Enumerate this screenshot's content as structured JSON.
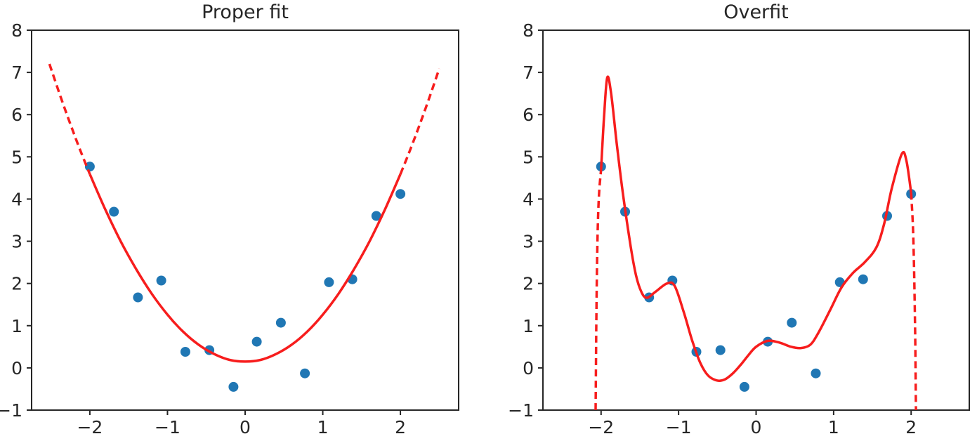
{
  "figure": {
    "background": "#ffffff"
  },
  "style": {
    "curve_color": "#f71d1d",
    "point_color": "#2077b4",
    "spine_color": "#262626",
    "text_color": "#262626",
    "point_radius": 7,
    "curve_width": 3.5,
    "dash_pattern": "10 6",
    "tick_length": 7
  },
  "chart_data": [
    {
      "type": "scatter",
      "title": "Proper fit",
      "xlim": [
        -2.75,
        2.75
      ],
      "ylim": [
        -1,
        8
      ],
      "grid": false,
      "legend": null,
      "xlabel": "",
      "ylabel": "",
      "xticks": [
        -2,
        -1,
        0,
        1,
        2
      ],
      "xtick_labels": [
        "−2",
        "−1",
        "0",
        "1",
        "2"
      ],
      "yticks": [
        -1,
        0,
        1,
        2,
        3,
        4,
        5,
        6,
        7,
        8
      ],
      "ytick_labels": [
        "−1",
        "0",
        "1",
        "2",
        "3",
        "4",
        "5",
        "6",
        "7",
        "8"
      ],
      "scatter_x": [
        -2.0,
        -1.69,
        -1.38,
        -1.08,
        -0.77,
        -0.46,
        -0.15,
        0.15,
        0.46,
        0.77,
        1.08,
        1.38,
        1.69,
        2.0
      ],
      "scatter_y": [
        4.77,
        3.7,
        1.67,
        2.07,
        0.38,
        0.42,
        -0.45,
        0.62,
        1.07,
        -0.13,
        2.03,
        2.1,
        3.6,
        4.12
      ],
      "curve_segments": [
        {
          "style": "dashed",
          "points": [
            [
              -2.52,
              7.2
            ],
            [
              -2.38,
              6.44
            ],
            [
              -2.25,
              5.77
            ],
            [
              -2.12,
              5.14
            ],
            [
              -2.0,
              4.59
            ]
          ]
        },
        {
          "style": "solid",
          "points": [
            [
              -2.0,
              4.59
            ],
            [
              -1.8,
              3.75
            ],
            [
              -1.6,
              2.99
            ],
            [
              -1.4,
              2.33
            ],
            [
              -1.2,
              1.75
            ],
            [
              -1.0,
              1.26
            ],
            [
              -0.8,
              0.86
            ],
            [
              -0.6,
              0.55
            ],
            [
              -0.4,
              0.33
            ],
            [
              -0.2,
              0.19
            ],
            [
              0.0,
              0.15
            ],
            [
              0.2,
              0.19
            ],
            [
              0.4,
              0.33
            ],
            [
              0.6,
              0.55
            ],
            [
              0.8,
              0.86
            ],
            [
              1.0,
              1.26
            ],
            [
              1.2,
              1.75
            ],
            [
              1.4,
              2.33
            ],
            [
              1.6,
              2.99
            ],
            [
              1.8,
              3.75
            ],
            [
              2.0,
              4.59
            ]
          ]
        },
        {
          "style": "dashed",
          "points": [
            [
              2.0,
              4.59
            ],
            [
              2.12,
              5.14
            ],
            [
              2.25,
              5.77
            ],
            [
              2.38,
              6.44
            ],
            [
              2.5,
              7.09
            ]
          ]
        }
      ]
    },
    {
      "type": "scatter",
      "title": "Overfit",
      "xlim": [
        -2.75,
        2.75
      ],
      "ylim": [
        -1,
        8
      ],
      "grid": false,
      "legend": null,
      "xlabel": "",
      "ylabel": "",
      "xticks": [
        -2,
        -1,
        0,
        1,
        2
      ],
      "xtick_labels": [
        "−2",
        "−1",
        "0",
        "1",
        "2"
      ],
      "yticks": [
        -1,
        0,
        1,
        2,
        3,
        4,
        5,
        6,
        7,
        8
      ],
      "ytick_labels": [
        "−1",
        "0",
        "1",
        "2",
        "3",
        "4",
        "5",
        "6",
        "7",
        "8"
      ],
      "scatter_x": [
        -2.0,
        -1.69,
        -1.38,
        -1.08,
        -0.77,
        -0.46,
        -0.15,
        0.15,
        0.46,
        0.77,
        1.08,
        1.38,
        1.69,
        2.0
      ],
      "scatter_y": [
        4.77,
        3.7,
        1.67,
        2.07,
        0.38,
        0.42,
        -0.45,
        0.62,
        1.07,
        -0.13,
        2.03,
        2.1,
        3.6,
        4.12
      ],
      "curve_segments": [
        {
          "style": "dashed",
          "points": [
            [
              -2.07,
              -1.0
            ],
            [
              -2.062,
              0.9
            ],
            [
              -2.05,
              2.7
            ],
            [
              -2.03,
              4.0
            ],
            [
              -2.0,
              4.7
            ]
          ]
        },
        {
          "style": "solid",
          "points": [
            [
              -2.0,
              4.7
            ],
            [
              -1.96,
              6.0
            ],
            [
              -1.92,
              6.88
            ],
            [
              -1.87,
              6.5
            ],
            [
              -1.8,
              5.35
            ],
            [
              -1.72,
              4.15
            ],
            [
              -1.62,
              2.9
            ],
            [
              -1.55,
              2.2
            ],
            [
              -1.48,
              1.8
            ],
            [
              -1.41,
              1.66
            ],
            [
              -1.3,
              1.8
            ],
            [
              -1.15,
              2.0
            ],
            [
              -1.05,
              1.94
            ],
            [
              -0.93,
              1.3
            ],
            [
              -0.82,
              0.62
            ],
            [
              -0.72,
              0.12
            ],
            [
              -0.62,
              -0.18
            ],
            [
              -0.5,
              -0.3
            ],
            [
              -0.4,
              -0.27
            ],
            [
              -0.3,
              -0.13
            ],
            [
              -0.2,
              0.07
            ],
            [
              -0.1,
              0.3
            ],
            [
              0.0,
              0.5
            ],
            [
              0.15,
              0.64
            ],
            [
              0.3,
              0.6
            ],
            [
              0.45,
              0.5
            ],
            [
              0.58,
              0.47
            ],
            [
              0.7,
              0.55
            ],
            [
              0.8,
              0.82
            ],
            [
              0.95,
              1.35
            ],
            [
              1.1,
              1.9
            ],
            [
              1.25,
              2.25
            ],
            [
              1.4,
              2.5
            ],
            [
              1.55,
              2.85
            ],
            [
              1.65,
              3.4
            ],
            [
              1.75,
              4.25
            ],
            [
              1.88,
              5.07
            ],
            [
              1.94,
              4.9
            ],
            [
              2.0,
              4.15
            ]
          ]
        },
        {
          "style": "dashed",
          "points": [
            [
              2.0,
              4.15
            ],
            [
              2.028,
              3.1
            ],
            [
              2.05,
              1.1
            ],
            [
              2.062,
              -1.0
            ]
          ]
        }
      ]
    }
  ]
}
